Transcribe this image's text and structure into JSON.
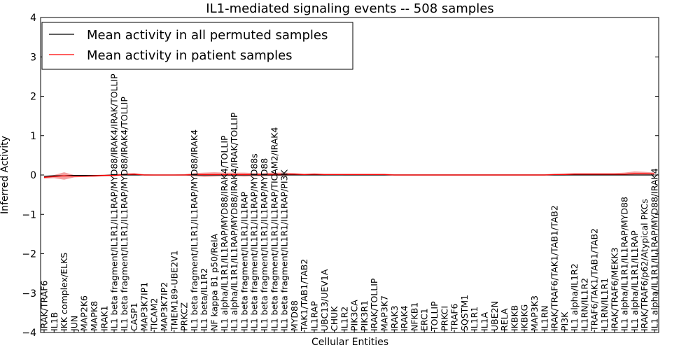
{
  "chart_data": {
    "type": "line",
    "title": "IL1-mediated signaling events -- 508 samples",
    "xlabel": "Cellular Entities",
    "ylabel": "Inferred Activity",
    "ylim": [
      -4,
      4
    ],
    "yticks": [
      "4",
      "3",
      "2",
      "1",
      "0",
      "−1",
      "−2",
      "−3",
      "−4"
    ],
    "legend_position": "top-left",
    "categories": [
      "IRAK/TRAF6",
      "IL1B",
      "IKK complex/ELKS",
      "JUN",
      "MAP2K6",
      "MAPK8",
      "IRAK1",
      "IL1 beta fragment/IL1R1/IL1RAP/MYD88/IRAK4/IRAK/TOLLIP",
      "IL1 beta fragment/IL1R1/IL1RAP/MYD88/IRAK4/TOLLIP",
      "CASP1",
      "MAP3K7IP1",
      "TICAM2",
      "MAP3K7IP2",
      "TMEM189-UBE2V1",
      "PRKCZ",
      "IL1 beta fragment/IL1R1/IL1RAP/MYD88/IRAK4",
      "IL1 beta/IL1R2",
      "NF kappa B1 p50/RelA",
      "IL1 alpha/IL1R1/IL1RAP/MYD88/IRAK4/TOLLIP",
      "IL1 alpha/IL1R1/IL1RAP/MYD88/IRAK4/IRAK/TOLLIP",
      "IL1 beta fragment/IL1R1/IL1RAP",
      "IL1 beta fragment/IL1R1/IL1RAP/MYD88s",
      "IL1 beta fragment/IL1R1/IL1RAP/MYD88",
      "IL1 beta fragment/IL1R1/IL1RAP/TICAM2/IRAK4",
      "IL1 beta fragment/IL1R1/IL1RAP/PI3K",
      "MYD88",
      "TAK1/TAB1/TAB2",
      "IL1RAP",
      "UBC13/UEV1A",
      "CHUK",
      "IL1R2",
      "PIK3CA",
      "PIK3R1",
      "IRAK/TOLLIP",
      "MAP3K7",
      "IRAK3",
      "IRAK4",
      "NFKB1",
      "ERC1",
      "TOLLIP",
      "PRKCI",
      "TRAF6",
      "SQSTM1",
      "IL1R1",
      "IL1A",
      "UBE2N",
      "RELA",
      "IKBKB",
      "IKBKG",
      "MAP3K3",
      "IL1RN",
      "IRAK/TRAF6/TAK1/TAB1/TAB2",
      "PI3K",
      "IL1 alpha/IL1R2",
      "IL1RN/IL1R2",
      "TRAF6/TAK1/TAB1/TAB2",
      "IL1RN/IL1R1",
      "IRAK/TRAF6/MEKK3",
      "IL1 alpha/IL1R1/IL1RAP/MYD88",
      "IL1 alpha/IL1R1/IL1RAP",
      "IRAK/TRAF6/p62/Atypical PKCs",
      "IL1 alpha/IL1R1/IL1RAP/MYD88/IRAK4"
    ],
    "series": [
      {
        "name": "Mean activity in all permuted samples",
        "color": "#000000",
        "values": [
          -0.03,
          -0.02,
          -0.02,
          -0.01,
          -0.01,
          -0.01,
          -0.01,
          0.0,
          0.0,
          0.0,
          0.0,
          0.0,
          0.0,
          0.0,
          0.0,
          0.0,
          0.0,
          0.0,
          0.0,
          0.0,
          0.0,
          0.0,
          0.0,
          0.0,
          0.0,
          0.0,
          0.0,
          0.0,
          0.0,
          0.0,
          0.0,
          0.0,
          0.0,
          0.0,
          0.0,
          0.0,
          0.0,
          0.0,
          0.0,
          0.0,
          0.0,
          0.0,
          0.0,
          0.0,
          0.0,
          0.0,
          0.0,
          0.0,
          0.0,
          0.0,
          0.0,
          0.0,
          0.0,
          0.0,
          0.0,
          0.0,
          0.0,
          0.0,
          0.0,
          0.0,
          0.0,
          0.0
        ]
      },
      {
        "name": "Mean activity in patient samples",
        "color": "#ff0000",
        "band_color": "#f08080",
        "values": [
          -0.06,
          -0.04,
          -0.02,
          -0.03,
          -0.03,
          -0.02,
          -0.01,
          -0.01,
          0.01,
          0.02,
          0.0,
          0.0,
          0.0,
          0.0,
          0.0,
          0.01,
          0.01,
          0.01,
          0.01,
          0.01,
          0.01,
          0.01,
          0.01,
          0.02,
          0.02,
          0.02,
          0.01,
          0.02,
          0.01,
          0.01,
          0.01,
          0.01,
          0.01,
          0.01,
          0.01,
          0.0,
          0.0,
          0.0,
          0.0,
          0.0,
          0.0,
          0.0,
          0.0,
          0.0,
          0.0,
          0.0,
          0.0,
          0.0,
          0.0,
          0.0,
          0.0,
          0.01,
          0.01,
          0.02,
          0.02,
          0.02,
          0.02,
          0.02,
          0.02,
          0.04,
          0.04,
          0.03
        ],
        "lower": [
          -0.09,
          -0.08,
          -0.12,
          -0.06,
          -0.05,
          -0.05,
          -0.03,
          -0.03,
          -0.01,
          0.0,
          -0.01,
          -0.01,
          -0.01,
          -0.01,
          -0.01,
          -0.03,
          -0.05,
          -0.04,
          -0.03,
          -0.03,
          -0.04,
          -0.03,
          -0.03,
          -0.02,
          -0.02,
          0.0,
          0.0,
          0.0,
          -0.01,
          0.0,
          -0.01,
          -0.01,
          -0.01,
          -0.01,
          -0.01,
          -0.01,
          -0.01,
          -0.01,
          -0.01,
          -0.01,
          -0.01,
          -0.01,
          -0.01,
          -0.01,
          -0.01,
          -0.01,
          -0.01,
          -0.01,
          -0.01,
          -0.01,
          -0.01,
          -0.01,
          -0.01,
          0.0,
          0.0,
          0.0,
          0.0,
          0.0,
          0.0,
          0.01,
          0.01,
          0.01
        ],
        "upper": [
          -0.03,
          0.0,
          0.07,
          0.0,
          -0.01,
          0.0,
          0.01,
          0.02,
          0.04,
          0.05,
          0.02,
          0.01,
          0.01,
          0.01,
          0.02,
          0.05,
          0.06,
          0.07,
          0.06,
          0.06,
          0.06,
          0.05,
          0.05,
          0.06,
          0.06,
          0.05,
          0.03,
          0.04,
          0.03,
          0.03,
          0.03,
          0.03,
          0.03,
          0.03,
          0.03,
          0.02,
          0.02,
          0.02,
          0.02,
          0.02,
          0.02,
          0.02,
          0.02,
          0.02,
          0.02,
          0.02,
          0.02,
          0.02,
          0.02,
          0.02,
          0.02,
          0.03,
          0.04,
          0.05,
          0.05,
          0.05,
          0.05,
          0.05,
          0.06,
          0.09,
          0.08,
          0.06
        ]
      }
    ]
  }
}
